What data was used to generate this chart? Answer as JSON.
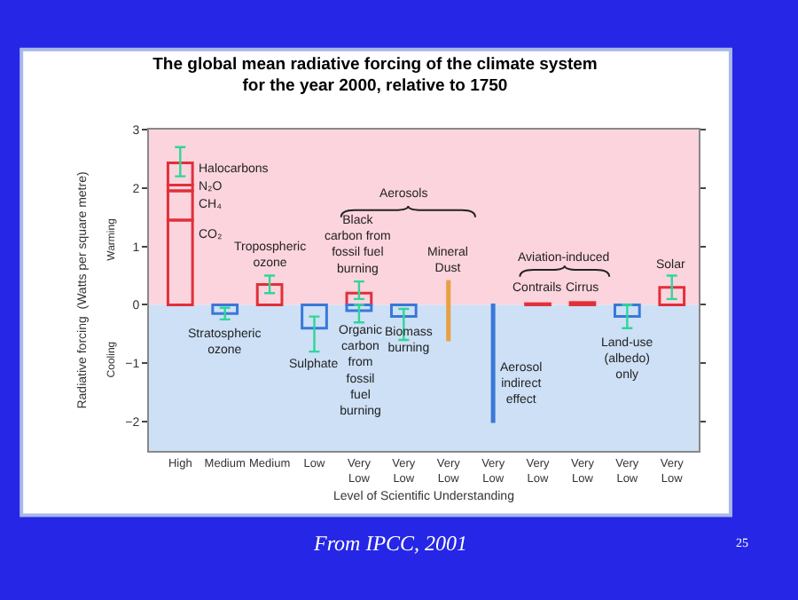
{
  "chart_data": {
    "type": "bar",
    "stacked": true,
    "title": "The global mean radiative forcing of the climate system for the year 2000, relative to 1750",
    "xlabel": "Level of Scientific Understanding",
    "ylabel": "Radiative forcing  (Watts per square metre)",
    "categories": [
      "High",
      "Medium",
      "Medium",
      "Low",
      "Very Low",
      "Very Low",
      "Very Low",
      "Very Low",
      "Very Low",
      "Very Low",
      "Very Low",
      "Very Low"
    ],
    "ylim": [
      -2.5,
      3
    ],
    "yticks": [
      -2,
      -1,
      0,
      1,
      2,
      3
    ],
    "grid": false,
    "legend": false,
    "bands": [
      {
        "axis": "y",
        "from": 0,
        "to": 3,
        "label": "Warming",
        "color": "#fcd4de"
      },
      {
        "axis": "y",
        "from": -2.5,
        "to": 0,
        "label": "Cooling",
        "color": "#cde0f6"
      }
    ],
    "series": [
      {
        "name": "CO₂",
        "color": "#e0303a",
        "values": [
          1.45,
          null,
          null,
          null,
          null,
          null,
          null,
          null,
          null,
          null,
          null,
          null
        ]
      },
      {
        "name": "CH₄",
        "color": "#e0303a",
        "values": [
          0.5,
          null,
          null,
          null,
          null,
          null,
          null,
          null,
          null,
          null,
          null,
          null
        ]
      },
      {
        "name": "N₂O",
        "color": "#e0303a",
        "values": [
          0.1,
          null,
          null,
          null,
          null,
          null,
          null,
          null,
          null,
          null,
          null,
          null
        ]
      },
      {
        "name": "Halocarbons",
        "color": "#e0303a",
        "values": [
          0.38,
          null,
          null,
          null,
          null,
          null,
          null,
          null,
          null,
          null,
          null,
          null
        ],
        "errors": [
          [
            2.2,
            2.7
          ],
          null,
          null,
          null,
          null,
          null,
          null,
          null,
          null,
          null,
          null,
          null
        ]
      },
      {
        "name": "Stratospheric ozone",
        "color": "#3a78d8",
        "values": [
          null,
          -0.15,
          null,
          null,
          null,
          null,
          null,
          null,
          null,
          null,
          null,
          null
        ],
        "errors": [
          null,
          [
            -0.25,
            -0.05
          ],
          null,
          null,
          null,
          null,
          null,
          null,
          null,
          null,
          null,
          null
        ]
      },
      {
        "name": "Tropospheric ozone",
        "color": "#e0303a",
        "values": [
          null,
          null,
          0.35,
          null,
          null,
          null,
          null,
          null,
          null,
          null,
          null,
          null
        ],
        "errors": [
          null,
          null,
          [
            0.2,
            0.5
          ],
          null,
          null,
          null,
          null,
          null,
          null,
          null,
          null,
          null
        ]
      },
      {
        "name": "Sulphate",
        "color": "#3a78d8",
        "values": [
          null,
          null,
          null,
          -0.4,
          null,
          null,
          null,
          null,
          null,
          null,
          null,
          null
        ],
        "errors": [
          null,
          null,
          null,
          [
            -0.8,
            -0.2
          ],
          null,
          null,
          null,
          null,
          null,
          null,
          null,
          null
        ]
      },
      {
        "name": "Black carbon from fossil fuel burning",
        "color": "#e0303a",
        "values": [
          null,
          null,
          null,
          null,
          0.2,
          null,
          null,
          null,
          null,
          null,
          null,
          null
        ],
        "errors": [
          null,
          null,
          null,
          null,
          [
            0.1,
            0.4
          ],
          null,
          null,
          null,
          null,
          null,
          null,
          null
        ]
      },
      {
        "name": "Organic carbon from fossil fuel burning",
        "color": "#3a78d8",
        "values": [
          null,
          null,
          null,
          null,
          -0.1,
          null,
          null,
          null,
          null,
          null,
          null,
          null
        ],
        "errors": [
          null,
          null,
          null,
          null,
          [
            -0.3,
            0.0
          ],
          null,
          null,
          null,
          null,
          null,
          null,
          null
        ]
      },
      {
        "name": "Biomass burning",
        "color": "#3a78d8",
        "values": [
          null,
          null,
          null,
          null,
          null,
          -0.2,
          null,
          null,
          null,
          null,
          null,
          null
        ],
        "errors": [
          null,
          null,
          null,
          null,
          null,
          [
            -0.6,
            -0.07
          ],
          null,
          null,
          null,
          null,
          null,
          null
        ]
      },
      {
        "name": "Mineral Dust",
        "color": "#e8a040",
        "values": [
          null,
          null,
          null,
          null,
          null,
          null,
          1.0,
          null,
          null,
          null,
          null,
          null
        ],
        "base": [
          null,
          null,
          null,
          null,
          null,
          null,
          -0.6,
          null,
          null,
          null,
          null,
          null
        ]
      },
      {
        "name": "Aerosol indirect effect",
        "color": "#3a78d8",
        "values": [
          null,
          null,
          null,
          null,
          null,
          null,
          null,
          2.0,
          null,
          null,
          null,
          null
        ],
        "base": [
          null,
          null,
          null,
          null,
          null,
          null,
          null,
          -2.0,
          null,
          null,
          null,
          null
        ]
      },
      {
        "name": "Contrails",
        "color": "#e0303a",
        "values": [
          null,
          null,
          null,
          null,
          null,
          null,
          null,
          null,
          0.02,
          null,
          null,
          null
        ]
      },
      {
        "name": "Cirrus",
        "color": "#e0303a",
        "values": [
          null,
          null,
          null,
          null,
          null,
          null,
          null,
          null,
          null,
          0.04,
          null,
          null
        ]
      },
      {
        "name": "Land-use (albedo) only",
        "color": "#3a78d8",
        "values": [
          null,
          null,
          null,
          null,
          null,
          null,
          null,
          null,
          null,
          null,
          -0.2,
          null
        ],
        "errors": [
          null,
          null,
          null,
          null,
          null,
          null,
          null,
          null,
          null,
          null,
          [
            -0.4,
            0.0
          ],
          null
        ]
      },
      {
        "name": "Solar",
        "color": "#e0303a",
        "values": [
          null,
          null,
          null,
          null,
          null,
          null,
          null,
          null,
          null,
          null,
          null,
          0.3
        ],
        "errors": [
          null,
          null,
          null,
          null,
          null,
          null,
          null,
          null,
          null,
          null,
          null,
          [
            0.1,
            0.5
          ]
        ]
      }
    ],
    "annotations": [
      "Aerosols",
      "Aviation-induced",
      "From IPCC, 2001",
      "25"
    ]
  }
}
